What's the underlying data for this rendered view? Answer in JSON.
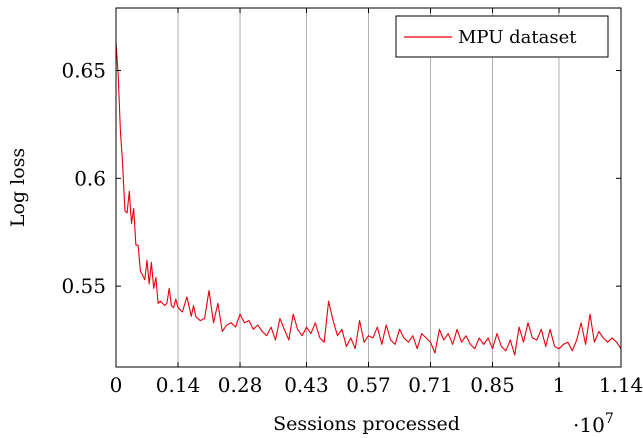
{
  "chart_data": {
    "type": "line",
    "title": "",
    "xlabel": "Sessions processed",
    "ylabel": "Log loss",
    "x_multiplier": "·10",
    "x_multiplier_exponent": "7",
    "xlim": [
      0,
      1.14
    ],
    "ylim": [
      0.5125,
      0.679
    ],
    "x_ticks": [
      0,
      0.14,
      0.28,
      0.43,
      0.57,
      0.71,
      0.85,
      1.0,
      1.14
    ],
    "x_tick_labels": [
      "0",
      "0.14",
      "0.28",
      "0.43",
      "0.57",
      "0.71",
      "0.85",
      "1",
      "1.14"
    ],
    "y_ticks": [
      0.55,
      0.6,
      0.65
    ],
    "y_tick_labels": [
      "0.55",
      "0.6",
      "0.65"
    ],
    "grid": "vertical",
    "legend_position": "top-right",
    "series": [
      {
        "name": "MPU dataset",
        "color": "#e8000b",
        "x": [
          0.0,
          0.005,
          0.01,
          0.015,
          0.02,
          0.025,
          0.03,
          0.035,
          0.04,
          0.045,
          0.05,
          0.055,
          0.06,
          0.065,
          0.07,
          0.075,
          0.08,
          0.085,
          0.09,
          0.095,
          0.1,
          0.105,
          0.11,
          0.115,
          0.12,
          0.125,
          0.13,
          0.135,
          0.14,
          0.15,
          0.16,
          0.17,
          0.175,
          0.18,
          0.19,
          0.2,
          0.21,
          0.22,
          0.23,
          0.24,
          0.25,
          0.26,
          0.27,
          0.28,
          0.29,
          0.3,
          0.31,
          0.32,
          0.33,
          0.34,
          0.35,
          0.36,
          0.37,
          0.38,
          0.39,
          0.4,
          0.41,
          0.42,
          0.43,
          0.44,
          0.45,
          0.46,
          0.47,
          0.48,
          0.49,
          0.5,
          0.51,
          0.52,
          0.53,
          0.54,
          0.55,
          0.56,
          0.57,
          0.58,
          0.59,
          0.6,
          0.61,
          0.62,
          0.63,
          0.64,
          0.65,
          0.66,
          0.67,
          0.68,
          0.69,
          0.7,
          0.71,
          0.72,
          0.73,
          0.74,
          0.75,
          0.76,
          0.77,
          0.78,
          0.79,
          0.8,
          0.81,
          0.82,
          0.83,
          0.84,
          0.85,
          0.86,
          0.87,
          0.88,
          0.89,
          0.9,
          0.91,
          0.92,
          0.93,
          0.94,
          0.95,
          0.96,
          0.97,
          0.98,
          0.99,
          1.0,
          1.01,
          1.02,
          1.03,
          1.04,
          1.05,
          1.06,
          1.07,
          1.08,
          1.09,
          1.1,
          1.11,
          1.12,
          1.13,
          1.14
        ],
        "y": [
          0.663,
          0.648,
          0.622,
          0.607,
          0.585,
          0.584,
          0.594,
          0.579,
          0.586,
          0.569,
          0.569,
          0.557,
          0.555,
          0.553,
          0.562,
          0.551,
          0.561,
          0.549,
          0.554,
          0.542,
          0.543,
          0.542,
          0.541,
          0.542,
          0.549,
          0.541,
          0.54,
          0.544,
          0.54,
          0.538,
          0.545,
          0.536,
          0.541,
          0.536,
          0.534,
          0.535,
          0.548,
          0.533,
          0.542,
          0.529,
          0.532,
          0.533,
          0.531,
          0.537,
          0.533,
          0.534,
          0.53,
          0.532,
          0.529,
          0.527,
          0.531,
          0.525,
          0.535,
          0.53,
          0.525,
          0.537,
          0.53,
          0.527,
          0.531,
          0.528,
          0.533,
          0.526,
          0.524,
          0.543,
          0.534,
          0.527,
          0.53,
          0.522,
          0.526,
          0.521,
          0.534,
          0.524,
          0.527,
          0.526,
          0.531,
          0.523,
          0.532,
          0.525,
          0.523,
          0.53,
          0.526,
          0.524,
          0.527,
          0.521,
          0.528,
          0.526,
          0.524,
          0.519,
          0.53,
          0.525,
          0.528,
          0.523,
          0.53,
          0.524,
          0.527,
          0.523,
          0.521,
          0.526,
          0.523,
          0.526,
          0.521,
          0.528,
          0.522,
          0.52,
          0.525,
          0.518,
          0.531,
          0.524,
          0.533,
          0.526,
          0.525,
          0.53,
          0.522,
          0.53,
          0.522,
          0.521,
          0.523,
          0.524,
          0.52,
          0.525,
          0.533,
          0.523,
          0.537,
          0.524,
          0.529,
          0.526,
          0.524,
          0.526,
          0.524,
          0.521
        ]
      }
    ]
  }
}
